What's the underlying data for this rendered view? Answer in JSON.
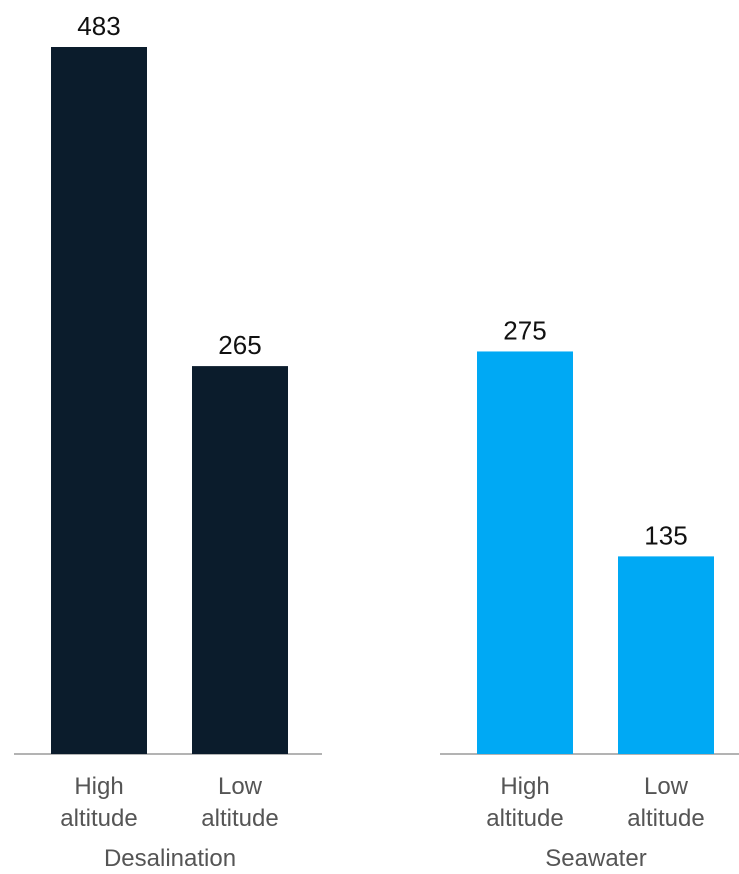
{
  "chart_data": {
    "type": "bar",
    "ylim": [
      0,
      483
    ],
    "grid": false,
    "groups": [
      {
        "name": "Desalination",
        "color": "#0b1c2c",
        "bars": [
          {
            "category": "High altitude",
            "label_lines": [
              "High",
              "altitude"
            ],
            "value": 483
          },
          {
            "category": "Low altitude",
            "label_lines": [
              "Low",
              "altitude"
            ],
            "value": 265
          }
        ]
      },
      {
        "name": "Seawater",
        "color": "#00a9f4",
        "bars": [
          {
            "category": "High altitude",
            "label_lines": [
              "High",
              "altitude"
            ],
            "value": 275
          },
          {
            "category": "Low altitude",
            "label_lines": [
              "Low",
              "altitude"
            ],
            "value": 135
          }
        ]
      }
    ]
  }
}
